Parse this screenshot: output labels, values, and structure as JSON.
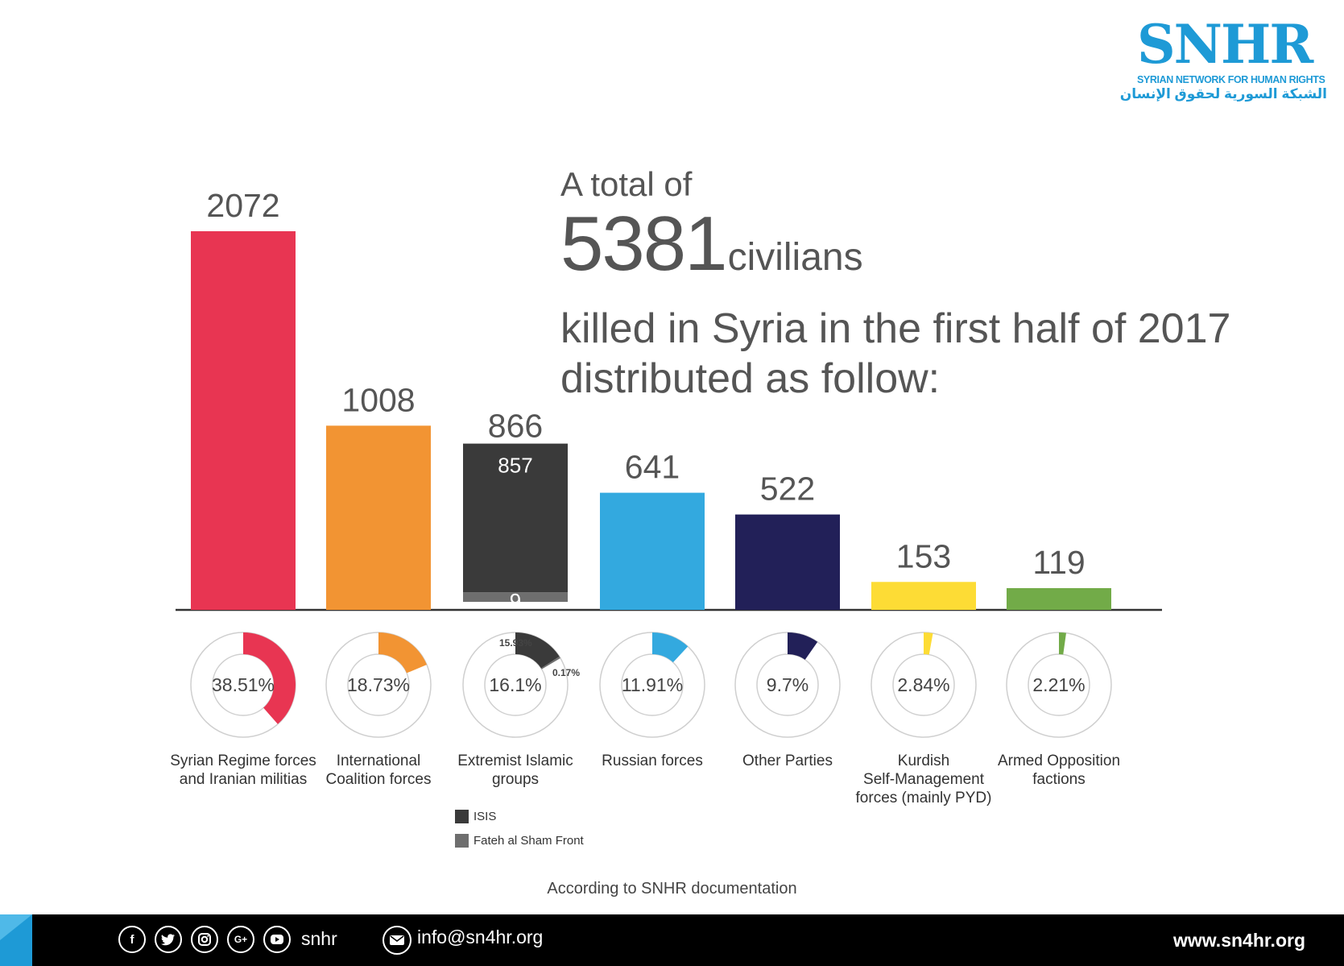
{
  "logo": {
    "mark": "SNHR",
    "name_en": "SYRIAN NETWORK FOR HUMAN RIGHTS",
    "name_ar": "الشبكة السورية لحقوق الإنسان"
  },
  "headline": {
    "prefix": "A total of",
    "number": "5381",
    "unit": "civilians",
    "line1": "killed in Syria in the first half of 2017",
    "line2": "distributed as follow:"
  },
  "chart_data": {
    "type": "bar",
    "categories": [
      "Syrian Regime forces and Iranian militias",
      "International Coalition forces",
      "Extremist Islamic groups",
      "Russian forces",
      "Other Parties",
      "Kurdish Self-Management forces (mainly PYD)",
      "Armed Opposition factions"
    ],
    "values": [
      2072,
      1008,
      866,
      641,
      522,
      153,
      119
    ],
    "value_labels": [
      "2072",
      "1008",
      "866",
      "641",
      "522",
      "153",
      "119"
    ],
    "colors": [
      "#e83552",
      "#f29433",
      "#3a3a3a",
      "#33a9df",
      "#222058",
      "#fddc35",
      "#72ab48"
    ],
    "stacked_segments": {
      "category_index": 2,
      "segments": [
        {
          "name": "ISIS",
          "value": 857,
          "label": "857",
          "color": "#3a3a3a"
        },
        {
          "name": "Fateh al Sham Front",
          "value": 9,
          "label": "9",
          "color": "#6e6e6e"
        }
      ]
    },
    "percentages": [
      38.51,
      18.73,
      16.1,
      11.91,
      9.7,
      2.84,
      2.21
    ],
    "percent_labels": [
      "38.51%",
      "18.73%",
      "16.1%",
      "11.91%",
      "9.7%",
      "2.84%",
      "2.21%"
    ],
    "sub_percentages": [
      {
        "category_index": 2,
        "label": "15.93%",
        "value": 15.93
      },
      {
        "category_index": 2,
        "label": "0.17%",
        "value": 0.17
      }
    ],
    "ylim": [
      0,
      2072
    ],
    "grid": false,
    "legend": [
      {
        "name": "ISIS",
        "color": "#3a3a3a"
      },
      {
        "name": "Fateh al Sham Front",
        "color": "#6e6e6e"
      }
    ]
  },
  "category_lines": [
    [
      "Syrian Regime forces",
      "and Iranian militias"
    ],
    [
      "International",
      "Coalition forces"
    ],
    [
      "Extremist Islamic",
      "groups"
    ],
    [
      "Russian forces"
    ],
    [
      "Other Parties"
    ],
    [
      "Kurdish",
      "Self-Management",
      "forces (mainly PYD)"
    ],
    [
      "Armed Opposition",
      "factions"
    ]
  ],
  "source_note": "According to SNHR documentation",
  "footer": {
    "social_icons": [
      "facebook-icon",
      "twitter-icon",
      "instagram-icon",
      "google-plus-icon",
      "youtube-icon"
    ],
    "handle": "snhr",
    "email": "info@sn4hr.org",
    "website": "www.sn4hr.org"
  }
}
